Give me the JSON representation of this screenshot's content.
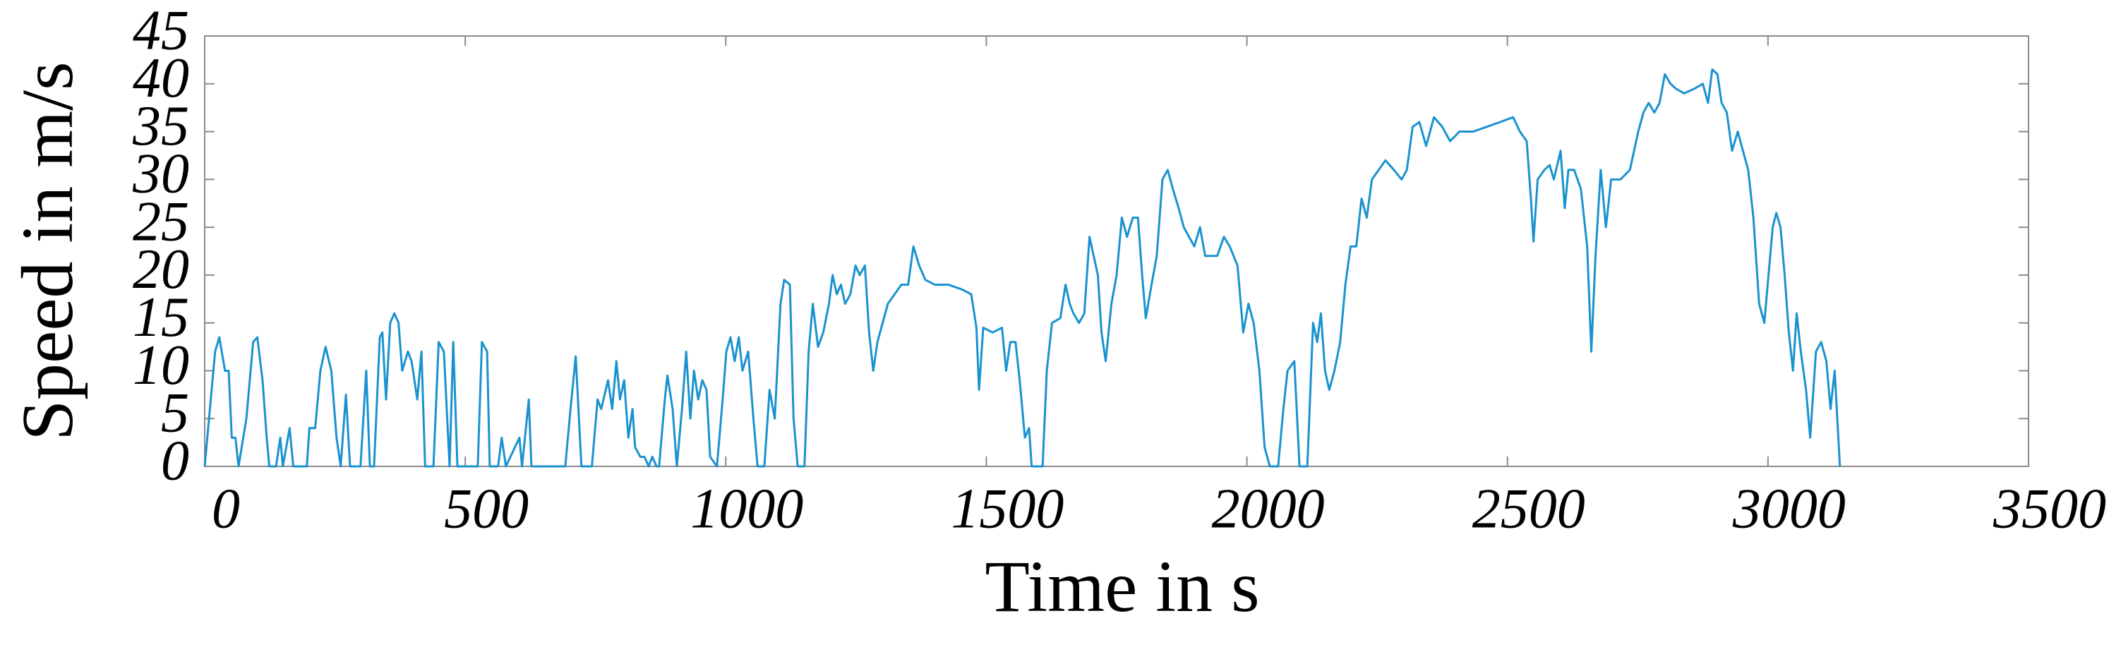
{
  "chart_data": {
    "type": "line",
    "xlabel": "Time in s",
    "ylabel": "Speed in m/s",
    "color": "#1a92cf",
    "xlim": [
      0,
      3500
    ],
    "xticks": [
      0,
      500,
      1000,
      1500,
      2000,
      2500,
      3000,
      3500
    ],
    "ylim": [
      0,
      45
    ],
    "yticks": [
      0,
      5,
      10,
      15,
      20,
      25,
      30,
      35,
      40,
      45
    ],
    "grid": false,
    "x": [
      0,
      20,
      28,
      39,
      46,
      52,
      59,
      65,
      80,
      93,
      101,
      111,
      119,
      124,
      137,
      145,
      150,
      163,
      170,
      196,
      201,
      212,
      222,
      232,
      243,
      253,
      261,
      271,
      279,
      299,
      310,
      317,
      325,
      336,
      341,
      348,
      356,
      364,
      372,
      379,
      390,
      397,
      408,
      416,
      423,
      439,
      449,
      459,
      470,
      477,
      485,
      524,
      532,
      542,
      547,
      563,
      570,
      578,
      604,
      609,
      622,
      627,
      692,
      702,
      712,
      723,
      743,
      754,
      761,
      774,
      782,
      790,
      797,
      805,
      813,
      821,
      826,
      836,
      844,
      852,
      859,
      867,
      872,
      883,
      888,
      898,
      906,
      916,
      924,
      932,
      939,
      947,
      955,
      963,
      970,
      983,
      994,
      1001,
      1009,
      1017,
      1025,
      1032,
      1043,
      1053,
      1061,
      1074,
      1084,
      1094,
      1105,
      1112,
      1123,
      1130,
      1138,
      1151,
      1159,
      1167,
      1177,
      1187,
      1198,
      1205,
      1213,
      1221,
      1229,
      1239,
      1249,
      1257,
      1267,
      1275,
      1283,
      1291,
      1301,
      1311,
      1324,
      1337,
      1350,
      1360,
      1371,
      1383,
      1401,
      1427,
      1453,
      1471,
      1481,
      1486,
      1494,
      1512,
      1530,
      1538,
      1546,
      1556,
      1564,
      1574,
      1582,
      1587,
      1608,
      1616,
      1626,
      1642,
      1652,
      1660,
      1667,
      1678,
      1688,
      1698,
      1706,
      1714,
      1721,
      1729,
      1740,
      1750,
      1760,
      1770,
      1781,
      1791,
      1799,
      1806,
      1817,
      1827,
      1838,
      1848,
      1858,
      1869,
      1879,
      1889,
      1899,
      1910,
      1920,
      1931,
      1943,
      1956,
      1967,
      1982,
      1993,
      2003,
      2013,
      2024,
      2034,
      2044,
      2060,
      2070,
      2078,
      2091,
      2101,
      2116,
      2127,
      2135,
      2142,
      2150,
      2158,
      2168,
      2179,
      2189,
      2199,
      2210,
      2220,
      2230,
      2240,
      2253,
      2266,
      2282,
      2297,
      2307,
      2318,
      2331,
      2344,
      2359,
      2375,
      2390,
      2408,
      2434,
      2460,
      2486,
      2511,
      2524,
      2537,
      2545,
      2550,
      2558,
      2571,
      2581,
      2589,
      2602,
      2610,
      2617,
      2628,
      2641,
      2653,
      2661,
      2669,
      2679,
      2689,
      2699,
      2717,
      2735,
      2751,
      2761,
      2771,
      2782,
      2792,
      2802,
      2813,
      2823,
      2839,
      2859,
      2875,
      2885,
      2893,
      2903,
      2911,
      2921,
      2931,
      2942,
      2952,
      2962,
      2972,
      2983,
      2993,
      3001,
      3009,
      3016,
      3024,
      3032,
      3040,
      3048,
      3055,
      3063,
      3073,
      3081,
      3092,
      3102,
      3112,
      3120,
      3128,
      3138
    ],
    "values": [
      0,
      12,
      13.5,
      10,
      10,
      3,
      3,
      0,
      5,
      13,
      13.5,
      9,
      3,
      0,
      0,
      3,
      0,
      4,
      0,
      0,
      4,
      4,
      10,
      12.5,
      10,
      3,
      0,
      7.5,
      0,
      0,
      10,
      0,
      0,
      13.5,
      14,
      7,
      15,
      16,
      15,
      10,
      12,
      11,
      7,
      12,
      0,
      0,
      13,
      12,
      0,
      13,
      0,
      0,
      13,
      12,
      0,
      0,
      3,
      0,
      3,
      0,
      7,
      0,
      0,
      6,
      11.5,
      0,
      0,
      7,
      6,
      9,
      6,
      11,
      7,
      9,
      3,
      6,
      2,
      1,
      1,
      0,
      1,
      0,
      0,
      7,
      9.5,
      6,
      0,
      6,
      12,
      5,
      10,
      7,
      9,
      8,
      1,
      0,
      7,
      12,
      13.5,
      11,
      13.5,
      10,
      12,
      5,
      0,
      0,
      8,
      5,
      17,
      19.5,
      19,
      5,
      0,
      0,
      12,
      17,
      12.5,
      14,
      17,
      20,
      18,
      19,
      17,
      18,
      21,
      20,
      21,
      14,
      10,
      13,
      15,
      17,
      18,
      19,
      19,
      23,
      21,
      19.5,
      19,
      19,
      18.5,
      18,
      14.5,
      8,
      14.5,
      14,
      14.5,
      10,
      13,
      13,
      9,
      3,
      4,
      0,
      0,
      10,
      15,
      15.5,
      19,
      17,
      16,
      15,
      16,
      24,
      22,
      20,
      14,
      11,
      17,
      20,
      26,
      24,
      26,
      26,
      20,
      15.5,
      19,
      22,
      30,
      31,
      29,
      27,
      25,
      24,
      23,
      25,
      22,
      22,
      22,
      24,
      23,
      21,
      14,
      17,
      15,
      10,
      2,
      0,
      0,
      6,
      10,
      11,
      0,
      0,
      15,
      13,
      16,
      10,
      8,
      10,
      13,
      19,
      23,
      23,
      28,
      26,
      30,
      31,
      32,
      31,
      30,
      31,
      35.5,
      36,
      33.5,
      36.5,
      35.5,
      34,
      35,
      35,
      35.5,
      36,
      36.5,
      35,
      34,
      28,
      23.5,
      30,
      31,
      31.5,
      30,
      33,
      27,
      31,
      31,
      29,
      23,
      12,
      22,
      31,
      25,
      30,
      30,
      31,
      35,
      37,
      38,
      37,
      38,
      41,
      40,
      39.5,
      39,
      39.5,
      40,
      38,
      41.5,
      41,
      38,
      37,
      33,
      35,
      33,
      31,
      26,
      17,
      15,
      20,
      25,
      26.5,
      25,
      20,
      14,
      10,
      16,
      12,
      8,
      3,
      12,
      13,
      11,
      6,
      10,
      0
    ]
  }
}
